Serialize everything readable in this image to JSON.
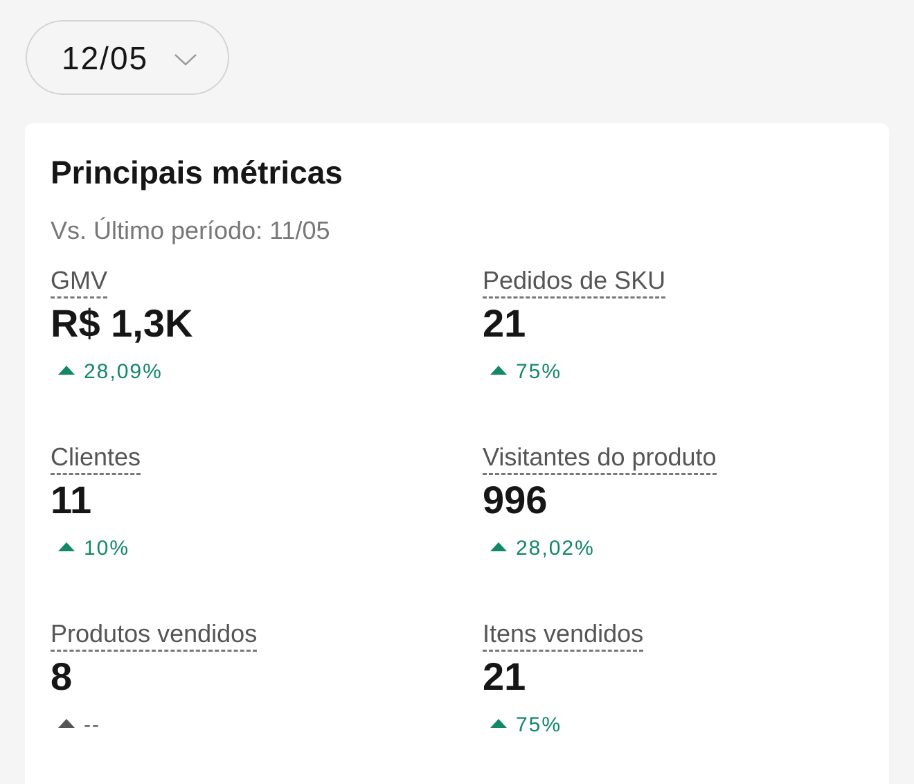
{
  "date_selector": {
    "label": "12/05"
  },
  "card": {
    "title": "Principais métricas",
    "subtitle": "Vs. Último período: 11/05",
    "metrics": [
      {
        "label": "GMV",
        "value": "R$ 1,3K",
        "change": "28,09%",
        "change_color": "#12876a"
      },
      {
        "label": "Pedidos de SKU",
        "value": "21",
        "change": "75%",
        "change_color": "#12876a"
      },
      {
        "label": "Clientes",
        "value": "11",
        "change": "10%",
        "change_color": "#12876a"
      },
      {
        "label": "Visitantes do produto",
        "value": "996",
        "change": "28,02%",
        "change_color": "#12876a"
      },
      {
        "label": "Produtos vendidos",
        "value": "8",
        "change": "--",
        "change_color": "#555555"
      },
      {
        "label": "Itens vendidos",
        "value": "21",
        "change": "75%",
        "change_color": "#12876a"
      }
    ]
  }
}
